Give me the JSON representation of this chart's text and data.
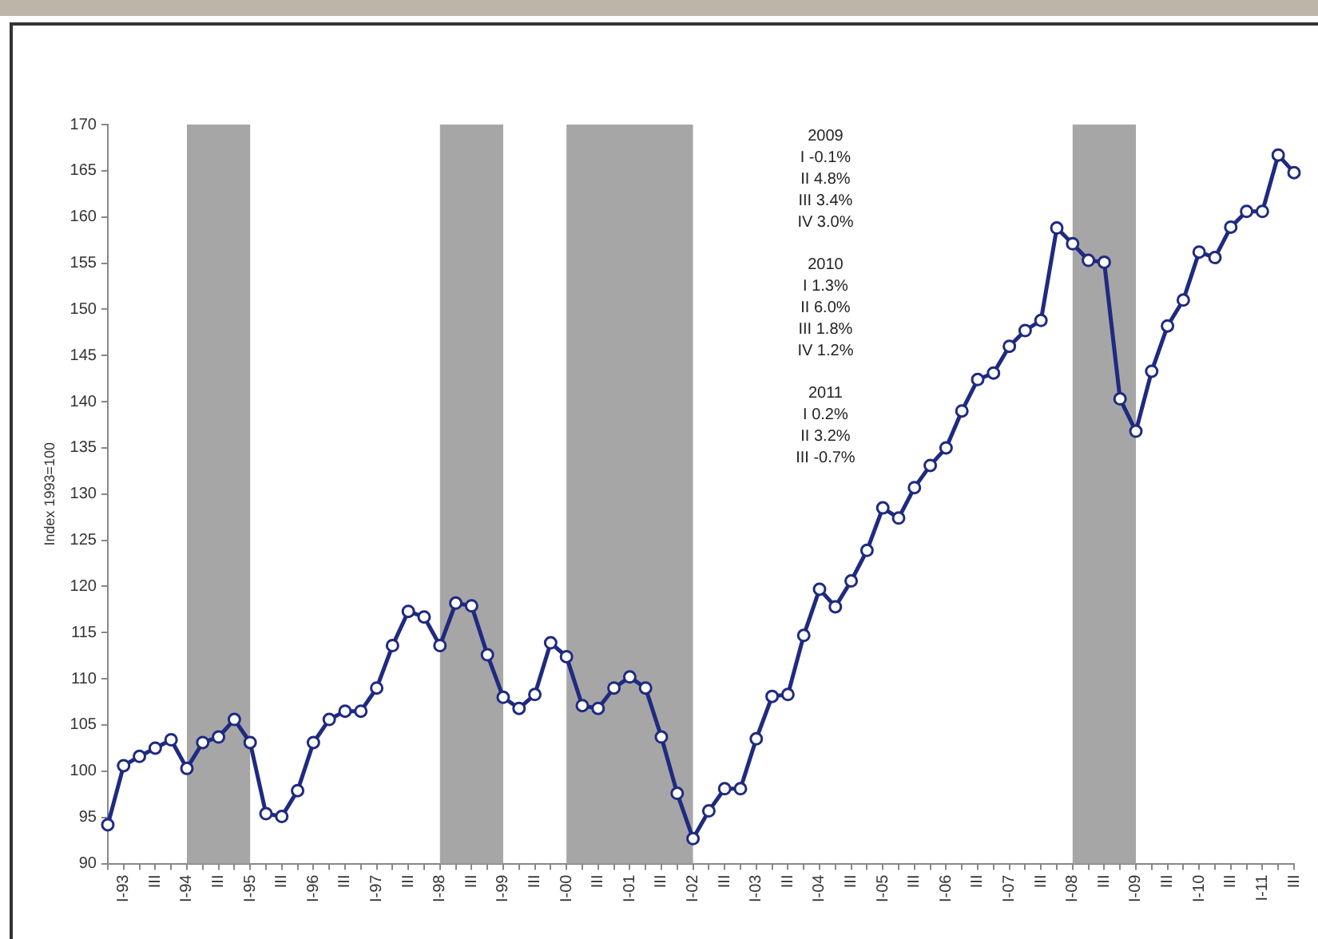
{
  "chart_data": {
    "type": "line",
    "ylabel": "Index 1993=100",
    "marker": "circle",
    "line_style": "solid",
    "grid": false,
    "legend": false,
    "categories": [
      null,
      "I-93",
      null,
      "III",
      null,
      "I-94",
      null,
      "III",
      null,
      "I-95",
      null,
      "III",
      null,
      "I-96",
      null,
      "III",
      null,
      "I-97",
      null,
      "III",
      null,
      "I-98",
      null,
      "III",
      null,
      "I-99",
      null,
      "III",
      null,
      "I-00",
      null,
      "III",
      null,
      "I-01",
      null,
      "III",
      null,
      "I-02",
      null,
      "III",
      null,
      "I-03",
      null,
      "III",
      null,
      "I-04",
      null,
      "III",
      null,
      "I-05",
      null,
      "III",
      null,
      "I-06",
      null,
      "III",
      null,
      "I-07",
      null,
      "III",
      null,
      "I-08",
      null,
      "III",
      null,
      "I-09",
      null,
      "III",
      null,
      "I-10",
      null,
      "III",
      null,
      "I-11",
      null,
      "III"
    ],
    "series": [
      {
        "color": "#1f2a80",
        "values": [
          94.2,
          100.6,
          101.6,
          102.5,
          103.4,
          100.3,
          103.1,
          103.7,
          105.6,
          103.1,
          95.4,
          95.1,
          97.9,
          103.1,
          105.6,
          106.5,
          106.5,
          109.0,
          113.6,
          117.3,
          116.7,
          113.6,
          118.2,
          117.9,
          112.6,
          108.0,
          106.8,
          108.3,
          113.9,
          112.4,
          107.1,
          106.8,
          109.0,
          110.2,
          109.0,
          103.7,
          97.6,
          92.7,
          95.7,
          98.1,
          98.1,
          103.5,
          108.1,
          108.3,
          114.7,
          119.7,
          117.8,
          120.6,
          123.9,
          128.5,
          127.4,
          130.7,
          133.1,
          135.0,
          139.0,
          142.4,
          143.1,
          146.0,
          147.7,
          148.8,
          158.8,
          157.1,
          155.3,
          155.1,
          140.3,
          136.8,
          143.3,
          148.2,
          151.0,
          156.2,
          155.6,
          158.9,
          160.6,
          160.6,
          166.7,
          164.8
        ]
      }
    ],
    "ylim": [
      90,
      170
    ],
    "yticks": [
      90,
      95,
      100,
      105,
      110,
      115,
      120,
      125,
      130,
      135,
      140,
      145,
      150,
      155,
      160,
      165,
      170
    ],
    "bands": [
      {
        "axis": "x",
        "from": "I-94",
        "to": "I-95",
        "color": "#a6a6a6"
      },
      {
        "axis": "x",
        "from": "I-98",
        "to": "I-99",
        "color": "#a6a6a6"
      },
      {
        "axis": "x",
        "from": "I-00",
        "to": "I-02",
        "color": "#a6a6a6"
      },
      {
        "axis": "x",
        "from": "I-08",
        "to": "I-09",
        "color": "#a6a6a6"
      }
    ],
    "annotations": [
      "2009\nI -0.1%\nII 4.8%\nIII 3.4%\nIV 3.0%",
      "2010\nI 1.3%\nII 6.0%\nIII 1.8%\nIV 1.2%",
      "2011\nI 0.2%\nII 3.2%\nIII -0.7%"
    ]
  }
}
